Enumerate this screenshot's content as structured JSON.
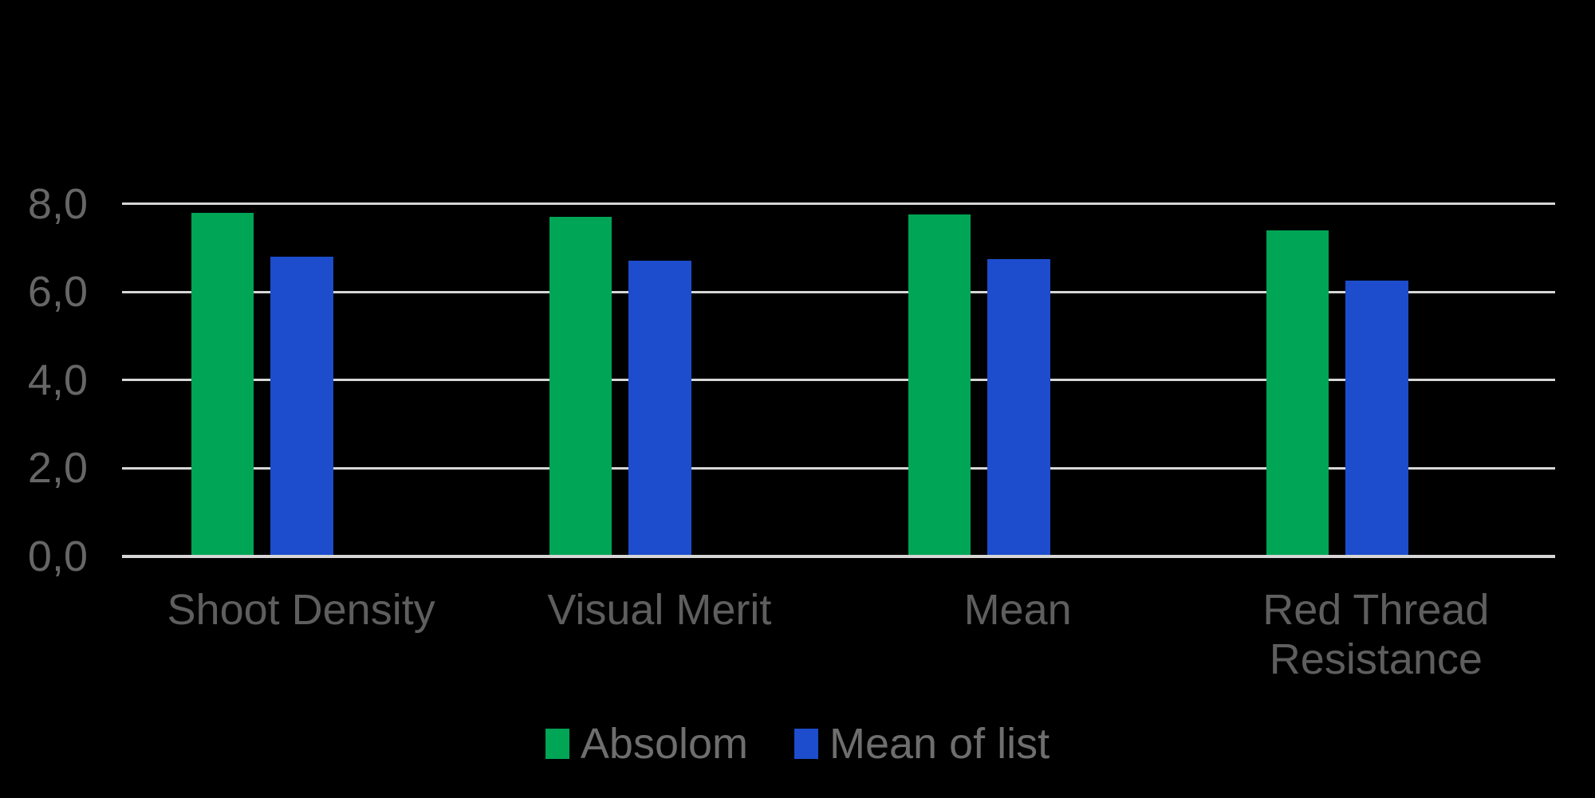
{
  "canvas": {
    "background_color": "#000000"
  },
  "chart_data": {
    "type": "bar",
    "title": "",
    "categories": [
      "Shoot Density",
      "Visual Merit",
      "Mean",
      "Red Thread Resistance"
    ],
    "series": [
      {
        "name": "Absolom",
        "color": "#00A555",
        "values": [
          7.8,
          7.7,
          7.75,
          7.4
        ]
      },
      {
        "name": "Mean of list",
        "color": "#1D4DCC",
        "values": [
          6.8,
          6.7,
          6.75,
          6.25
        ]
      }
    ],
    "ylim": [
      0,
      8
    ],
    "yticks": [
      0,
      2,
      4,
      6,
      8
    ],
    "ytick_labels": [
      "0,0",
      "2,0",
      "4,0",
      "6,0",
      "8,0"
    ],
    "decimal_separator": ",",
    "grid": true,
    "gridline_color": "#D6D6D6",
    "tick_label_color": "#666666",
    "category_label_color": "#5E5E5E",
    "legend_text_color": "#6E6E6E",
    "legend_position": "bottom"
  }
}
